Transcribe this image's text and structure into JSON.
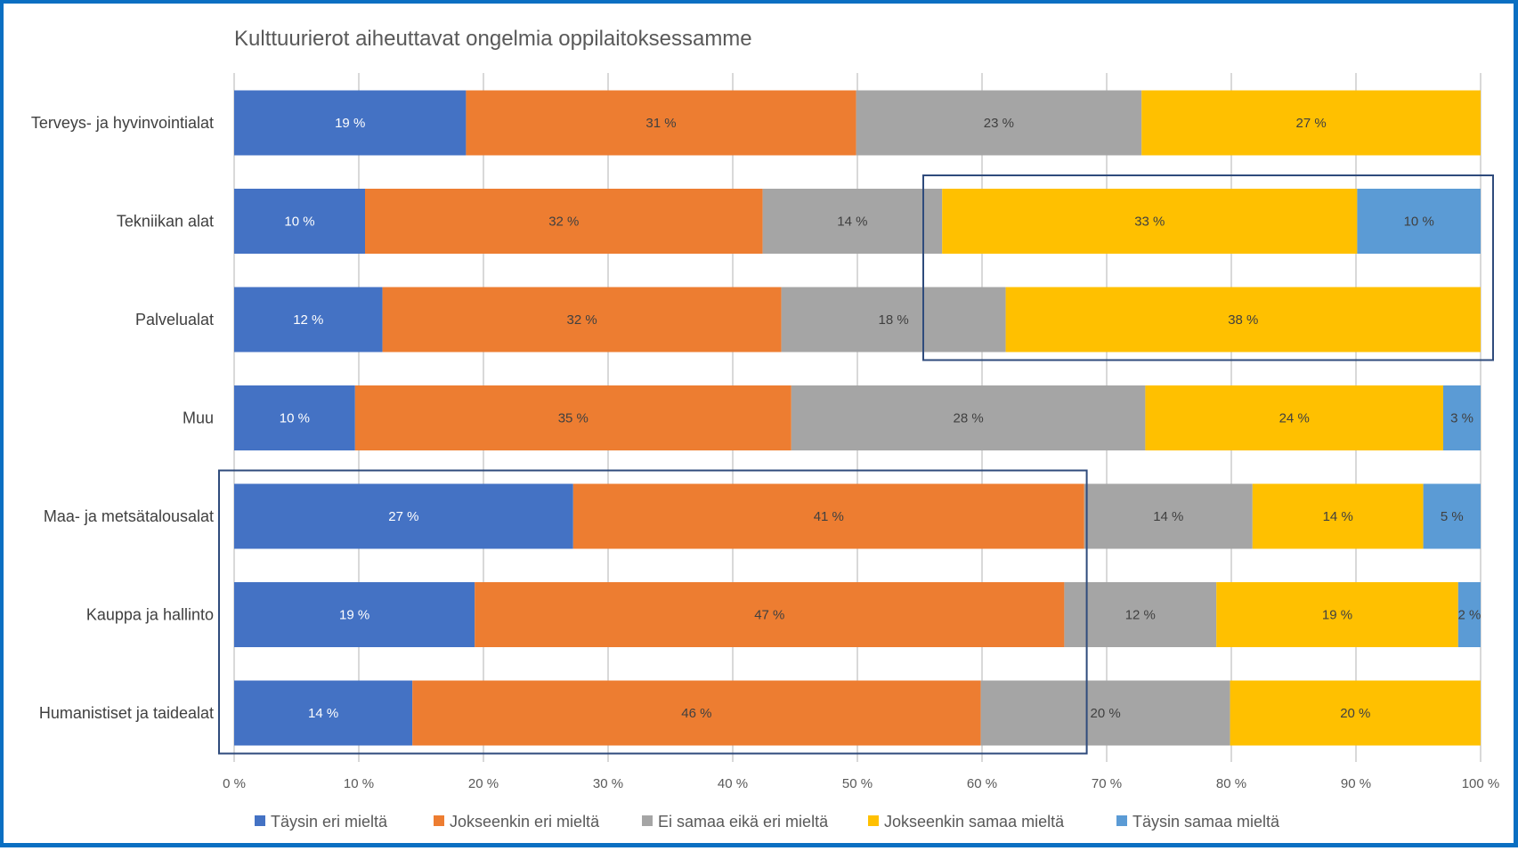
{
  "chart_data": {
    "type": "bar",
    "orientation": "horizontal",
    "stacked": "100%",
    "title": "Kulttuurierot aiheuttavat ongelmia oppilaitoksessamme",
    "xlabel": "",
    "ylabel": "",
    "xlim": [
      0,
      100
    ],
    "x_ticks": [
      "0 %",
      "10 %",
      "20 %",
      "30 %",
      "40 %",
      "50 %",
      "60 %",
      "70 %",
      "80 %",
      "90 %",
      "100 %"
    ],
    "grid": "vertical",
    "legend_position": "bottom",
    "categories": [
      "Terveys- ja hyvinvointialat",
      "Tekniikan alat",
      "Palvelualat",
      "Muu",
      "Maa- ja metsätalousalat",
      "Kauppa ja hallinto",
      "Humanistiset ja taidealat"
    ],
    "series": [
      {
        "name": "Täysin eri mieltä",
        "color": "#4472c4",
        "label_color": "#ffffff",
        "values": [
          18.6,
          10.5,
          11.9,
          9.7,
          27.2,
          19.3,
          14.3
        ],
        "labels": [
          "19 %",
          "10 %",
          "12 %",
          "10 %",
          "27 %",
          "19 %",
          "14 %"
        ]
      },
      {
        "name": "Jokseenkin eri mieltä",
        "color": "#ed7d31",
        "label_color": "#404040",
        "values": [
          31.3,
          31.9,
          32.0,
          35.0,
          41.0,
          47.3,
          45.6
        ],
        "labels": [
          "31 %",
          "32 %",
          "32 %",
          "35 %",
          "41 %",
          "47 %",
          "46 %"
        ]
      },
      {
        "name": "Ei samaa eikä eri mieltä",
        "color": "#a5a5a5",
        "label_color": "#404040",
        "values": [
          22.9,
          14.4,
          18.0,
          28.4,
          13.5,
          12.2,
          20.0
        ],
        "labels": [
          "23 %",
          "14 %",
          "18 %",
          "28 %",
          "14 %",
          "12 %",
          "20 %"
        ]
      },
      {
        "name": "Jokseenkin samaa mieltä",
        "color": "#ffc000",
        "label_color": "#404040",
        "values": [
          27.2,
          33.3,
          38.1,
          23.9,
          13.7,
          19.4,
          20.1
        ],
        "labels": [
          "27 %",
          "33 %",
          "38 %",
          "24 %",
          "14 %",
          "19 %",
          "20 %"
        ]
      },
      {
        "name": "Täysin samaa mieltä",
        "color": "#5b9bd5",
        "label_color": "#404040",
        "values": [
          0,
          9.9,
          0,
          3.0,
          4.6,
          1.8,
          0
        ],
        "labels": [
          "",
          "10 %",
          "",
          "3 %",
          "5 %",
          "2 %",
          ""
        ]
      }
    ],
    "annotations": [
      {
        "type": "highlight-box",
        "categories": [
          "Tekniikan alat",
          "Palvelualat"
        ],
        "x_range": [
          55.5,
          101
        ],
        "color": "#2f4b7c"
      },
      {
        "type": "highlight-box",
        "categories": [
          "Maa- ja metsätalousalat",
          "Kauppa ja hallinto",
          "Humanistiset ja taidealat"
        ],
        "x_range": [
          -1,
          68.4
        ],
        "color": "#2f4b7c"
      }
    ]
  }
}
